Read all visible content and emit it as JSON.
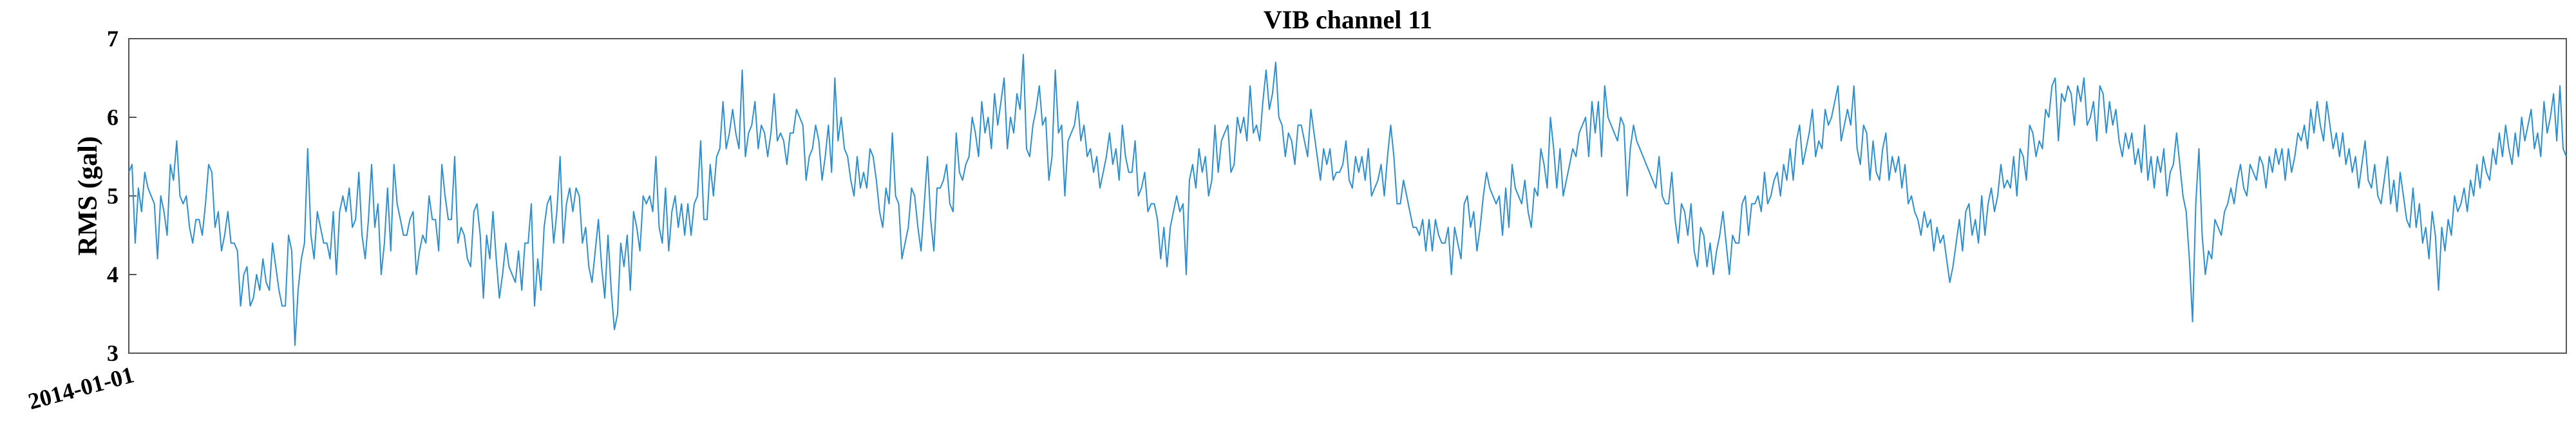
{
  "chart_data": {
    "type": "line",
    "title": "VIB channel 11",
    "xlabel": "",
    "ylabel": "RMS (gal)",
    "ylim": [
      3,
      7
    ],
    "yticks": [
      "3",
      "4",
      "5",
      "6",
      "7"
    ],
    "xtick_labels": [
      "2014-01-01"
    ],
    "grid": false,
    "legend": "none",
    "line_color": "#2e8ece",
    "series": [
      {
        "values": [
          5.3,
          5.4,
          4.4,
          5.1,
          4.8,
          5.3,
          5.1,
          5.0,
          4.9,
          4.2,
          5.0,
          4.8,
          4.5,
          5.4,
          5.2,
          5.7,
          5.0,
          4.9,
          5.0,
          4.6,
          4.4,
          4.7,
          4.7,
          4.5,
          4.9,
          5.4,
          5.3,
          4.6,
          4.8,
          4.3,
          4.5,
          4.8,
          4.4,
          4.4,
          4.3,
          3.6,
          4.0,
          4.1,
          3.6,
          3.7,
          4.0,
          3.8,
          4.2,
          3.9,
          3.8,
          4.4,
          4.1,
          3.8,
          3.6,
          3.6,
          4.5,
          4.3,
          3.1,
          3.8,
          4.2,
          4.4,
          5.6,
          4.5,
          4.2,
          4.8,
          4.6,
          4.4,
          4.4,
          4.2,
          4.8,
          4.0,
          4.8,
          5.0,
          4.8,
          5.1,
          4.6,
          4.7,
          5.3,
          4.5,
          4.2,
          4.7,
          5.4,
          4.6,
          4.9,
          4.0,
          4.4,
          5.1,
          4.3,
          5.4,
          4.9,
          4.7,
          4.5,
          4.5,
          4.7,
          4.8,
          4.0,
          4.3,
          4.5,
          4.4,
          5.0,
          4.7,
          4.7,
          4.3,
          5.4,
          5.0,
          4.7,
          4.7,
          5.5,
          4.4,
          4.6,
          4.5,
          4.2,
          4.1,
          4.8,
          4.9,
          4.5,
          3.7,
          4.5,
          4.2,
          4.8,
          4.2,
          3.7,
          4.0,
          4.4,
          4.1,
          4.0,
          3.9,
          4.3,
          3.8,
          4.4,
          4.4,
          4.9,
          3.6,
          4.2,
          3.8,
          4.6,
          4.9,
          5.0,
          4.4,
          4.8,
          5.5,
          4.4,
          4.9,
          5.1,
          4.8,
          5.1,
          5.0,
          4.4,
          4.6,
          4.1,
          3.9,
          4.3,
          4.7,
          4.1,
          3.7,
          4.5,
          3.8,
          3.3,
          3.5,
          4.4,
          4.1,
          4.5,
          3.8,
          4.8,
          4.6,
          4.3,
          5.0,
          4.9,
          5.0,
          4.8,
          5.5,
          4.6,
          4.4,
          5.1,
          4.3,
          4.8,
          5.0,
          4.6,
          4.9,
          4.5,
          4.9,
          4.5,
          4.9,
          5.0,
          5.7,
          4.7,
          4.7,
          5.4,
          5.0,
          5.5,
          5.6,
          6.2,
          5.6,
          5.8,
          6.1,
          5.8,
          5.6,
          6.6,
          5.5,
          5.8,
          5.9,
          6.2,
          5.6,
          5.9,
          5.8,
          5.5,
          5.8,
          6.3,
          5.7,
          5.8,
          5.7,
          5.4,
          5.8,
          5.8,
          6.1,
          6.0,
          5.9,
          5.2,
          5.5,
          5.6,
          5.9,
          5.7,
          5.2,
          5.5,
          5.9,
          5.3,
          6.5,
          5.7,
          6.0,
          5.6,
          5.5,
          5.2,
          5.0,
          5.5,
          5.1,
          5.3,
          5.1,
          5.6,
          5.5,
          5.2,
          4.8,
          4.6,
          5.1,
          4.9,
          5.8,
          5.0,
          4.9,
          4.2,
          4.4,
          4.6,
          5.1,
          5.0,
          4.6,
          4.3,
          4.9,
          5.5,
          4.7,
          4.3,
          5.1,
          5.1,
          5.2,
          5.4,
          4.9,
          4.8,
          5.8,
          5.3,
          5.2,
          5.4,
          5.5,
          6.0,
          5.8,
          5.5,
          6.2,
          5.8,
          6.0,
          5.6,
          6.3,
          5.9,
          6.2,
          6.5,
          5.6,
          6.0,
          5.8,
          6.3,
          6.1,
          6.8,
          5.6,
          5.5,
          5.9,
          6.1,
          6.4,
          5.9,
          6.0,
          5.2,
          5.5,
          6.6,
          5.8,
          5.9,
          5.0,
          5.7,
          5.8,
          5.9,
          6.2,
          5.7,
          5.9,
          5.5,
          5.6,
          5.3,
          5.5,
          5.1,
          5.3,
          5.5,
          5.8,
          5.4,
          5.6,
          5.2,
          5.9,
          5.5,
          5.3,
          5.3,
          5.7,
          5.0,
          5.1,
          5.3,
          4.8,
          4.9,
          4.9,
          4.7,
          4.2,
          4.6,
          4.1,
          4.6,
          4.8,
          5.0,
          4.8,
          4.9,
          4.0,
          5.2,
          5.4,
          5.1,
          5.6,
          5.3,
          5.5,
          5.0,
          5.2,
          5.9,
          5.3,
          5.7,
          5.8,
          5.9,
          5.3,
          5.4,
          6.0,
          5.8,
          6.0,
          5.7,
          6.4,
          5.8,
          5.9,
          5.7,
          6.2,
          6.6,
          6.1,
          6.3,
          6.7,
          6.0,
          5.9,
          5.5,
          5.8,
          5.7,
          5.4,
          5.9,
          5.9,
          5.7,
          5.5,
          6.1,
          5.8,
          5.5,
          5.2,
          5.6,
          5.4,
          5.6,
          5.2,
          5.3,
          5.3,
          5.4,
          5.7,
          5.2,
          5.1,
          5.5,
          5.3,
          5.5,
          5.2,
          5.6,
          5.0,
          5.1,
          5.2,
          5.4,
          5.0,
          5.5,
          5.9,
          5.5,
          4.9,
          4.9,
          5.2,
          5.0,
          4.8,
          4.6,
          4.6,
          4.5,
          4.7,
          4.3,
          4.7,
          4.3,
          4.7,
          4.5,
          4.4,
          4.4,
          4.6,
          4.0,
          4.6,
          4.4,
          4.2,
          4.9,
          5.0,
          4.6,
          4.8,
          4.3,
          4.6,
          5.0,
          5.3,
          5.1,
          5.0,
          4.9,
          5.0,
          4.5,
          5.1,
          4.6,
          5.4,
          5.1,
          5.0,
          4.9,
          5.2,
          4.8,
          4.6,
          5.1,
          5.0,
          5.6,
          5.4,
          5.1,
          6.0,
          5.6,
          5.1,
          5.6,
          5.0,
          5.2,
          5.4,
          5.6,
          5.5,
          5.8,
          5.9,
          6.0,
          5.5,
          6.2,
          5.8,
          6.2,
          5.5,
          6.4,
          6.0,
          5.9,
          5.8,
          5.7,
          6.0,
          5.9,
          5.0,
          5.6,
          5.9,
          5.7,
          5.6,
          5.5,
          5.4,
          5.3,
          5.2,
          5.1,
          5.5,
          5.0,
          4.9,
          4.9,
          5.3,
          4.7,
          4.4,
          4.9,
          4.8,
          4.5,
          4.9,
          4.3,
          4.1,
          4.6,
          4.5,
          4.1,
          4.4,
          4.0,
          4.3,
          4.5,
          4.8,
          4.4,
          4.0,
          4.5,
          4.4,
          4.4,
          4.9,
          5.0,
          4.5,
          4.9,
          4.9,
          5.0,
          4.8,
          5.3,
          4.9,
          5.0,
          5.2,
          5.3,
          5.0,
          5.4,
          5.2,
          5.6,
          5.2,
          5.7,
          5.9,
          5.4,
          5.6,
          5.8,
          6.1,
          5.5,
          5.7,
          5.6,
          6.1,
          5.9,
          6.0,
          6.2,
          6.4,
          5.7,
          5.9,
          6.1,
          5.9,
          6.4,
          5.6,
          5.4,
          5.9,
          5.8,
          5.2,
          5.7,
          5.3,
          5.2,
          5.6,
          5.8,
          5.2,
          5.5,
          5.3,
          5.5,
          5.1,
          5.4,
          4.9,
          5.0,
          4.8,
          4.7,
          4.5,
          4.8,
          4.6,
          4.7,
          4.3,
          4.6,
          4.4,
          4.5,
          4.2,
          3.9,
          4.1,
          4.4,
          4.7,
          4.3,
          4.8,
          4.9,
          4.5,
          4.7,
          4.4,
          5.0,
          4.5,
          4.9,
          5.1,
          4.8,
          5.0,
          5.4,
          5.1,
          5.2,
          5.1,
          5.5,
          5.0,
          5.6,
          5.5,
          5.2,
          5.9,
          5.8,
          5.5,
          5.7,
          5.6,
          6.1,
          6.0,
          6.4,
          6.5,
          5.7,
          6.3,
          6.2,
          6.4,
          6.3,
          5.9,
          6.4,
          6.2,
          6.5,
          5.9,
          6.0,
          6.2,
          5.7,
          6.4,
          6.3,
          5.8,
          6.2,
          5.9,
          6.1,
          5.7,
          5.5,
          5.8,
          5.6,
          5.8,
          5.4,
          5.6,
          5.3,
          5.9,
          5.2,
          5.5,
          5.1,
          5.5,
          5.3,
          5.6,
          5.0,
          5.3,
          5.4,
          5.8,
          5.4,
          5.0,
          4.8,
          4.2,
          3.4,
          4.9,
          5.6,
          4.5,
          4.0,
          4.3,
          4.2,
          4.7,
          4.6,
          4.5,
          4.8,
          4.9,
          5.1,
          4.9,
          5.2,
          5.4,
          5.1,
          5.0,
          5.4,
          5.3,
          5.2,
          5.5,
          5.4,
          5.1,
          5.5,
          5.3,
          5.6,
          5.4,
          5.6,
          5.2,
          5.6,
          5.3,
          5.5,
          5.8,
          5.7,
          5.9,
          5.6,
          6.1,
          5.8,
          6.2,
          5.9,
          5.7,
          6.2,
          5.9,
          5.6,
          5.8,
          5.5,
          5.8,
          5.4,
          5.6,
          5.3,
          5.5,
          5.1,
          5.4,
          5.7,
          5.2,
          5.1,
          5.4,
          5.0,
          4.9,
          5.2,
          5.5,
          4.9,
          5.2,
          4.8,
          5.3,
          5.0,
          4.7,
          4.6,
          5.1,
          4.6,
          4.9,
          4.4,
          4.6,
          4.2,
          4.8,
          4.5,
          3.8,
          4.6,
          4.3,
          4.7,
          4.5,
          5.0,
          4.8,
          4.9,
          5.1,
          4.8,
          5.2,
          5.0,
          5.4,
          5.1,
          5.5,
          5.3,
          5.2,
          5.6,
          5.4,
          5.8,
          5.5,
          5.9,
          5.6,
          5.4,
          5.8,
          5.5,
          6.0,
          5.7,
          5.9,
          6.1,
          5.6,
          5.8,
          5.5,
          6.2,
          5.8,
          6.0,
          6.3,
          5.7,
          6.4,
          5.6,
          5.5
        ]
      }
    ]
  }
}
